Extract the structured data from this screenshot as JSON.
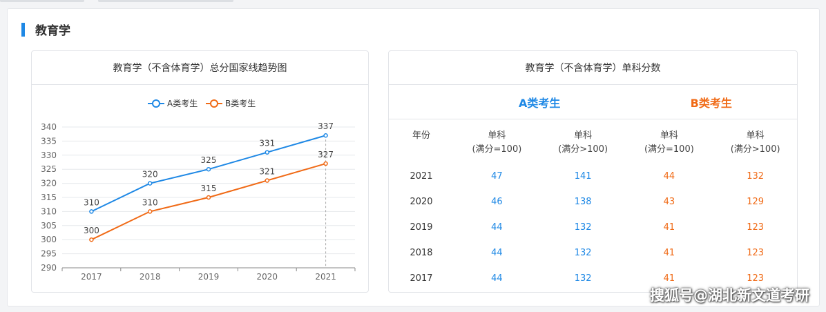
{
  "section": {
    "title": "教育学"
  },
  "chart_panel": {
    "title": "教育学（不含体育学）总分国家线趋势图"
  },
  "chart_data": {
    "type": "line",
    "categories": [
      "2017",
      "2018",
      "2019",
      "2020",
      "2021"
    ],
    "series": [
      {
        "name": "A类考生",
        "values": [
          310,
          320,
          325,
          331,
          337
        ],
        "color": "#1e88e5"
      },
      {
        "name": "B类考生",
        "values": [
          300,
          310,
          315,
          321,
          327
        ],
        "color": "#f06a16"
      }
    ],
    "ylim": [
      290,
      340
    ],
    "yticks": [
      290,
      295,
      300,
      305,
      310,
      315,
      320,
      325,
      330,
      335,
      340
    ],
    "grid": true,
    "legend": "top-center"
  },
  "table_panel": {
    "title": "教育学（不含体育学）单科分数",
    "category_a": "A类考生",
    "category_b": "B类考生",
    "headers": {
      "year": "年份",
      "cols": [
        {
          "line1": "单科",
          "line2": "(满分=100)"
        },
        {
          "line1": "单科",
          "line2": "(满分>100)"
        },
        {
          "line1": "单科",
          "line2": "(满分=100)"
        },
        {
          "line1": "单科",
          "line2": "(满分>100)"
        }
      ]
    },
    "rows": [
      {
        "year": "2021",
        "a1": "47",
        "a2": "141",
        "b1": "44",
        "b2": "132"
      },
      {
        "year": "2020",
        "a1": "46",
        "a2": "138",
        "b1": "43",
        "b2": "129"
      },
      {
        "year": "2019",
        "a1": "44",
        "a2": "132",
        "b1": "41",
        "b2": "123"
      },
      {
        "year": "2018",
        "a1": "44",
        "a2": "132",
        "b1": "41",
        "b2": "123"
      },
      {
        "year": "2017",
        "a1": "44",
        "a2": "132",
        "b1": "41",
        "b2": "123"
      }
    ]
  },
  "watermark": "搜狐号@湖北新文道考研"
}
